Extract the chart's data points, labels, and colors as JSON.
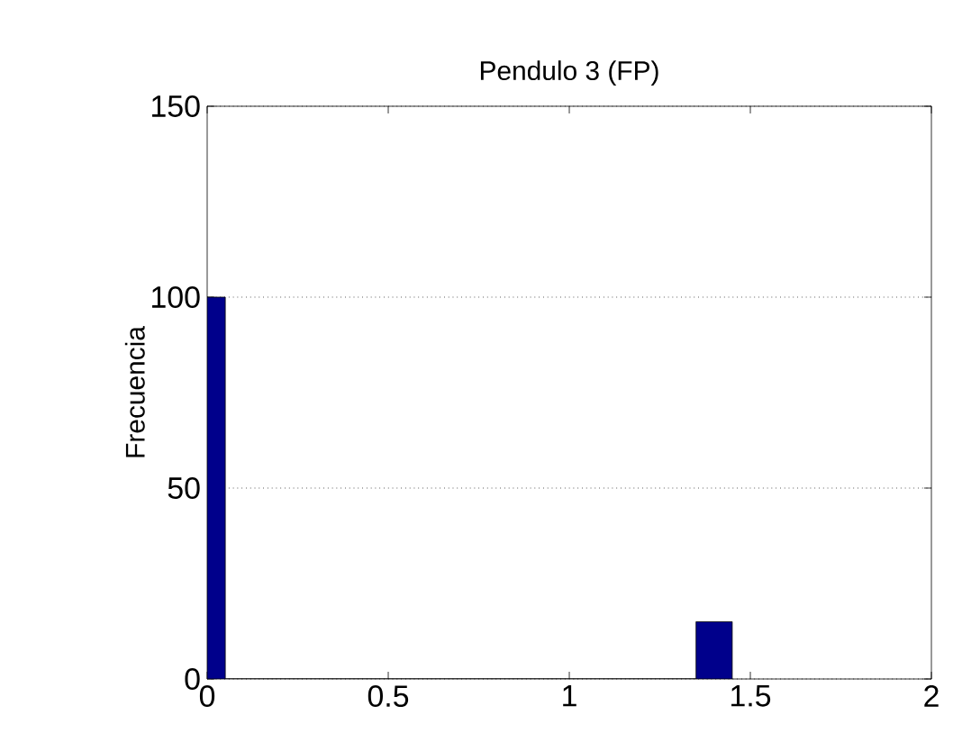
{
  "chart_data": {
    "type": "histogram",
    "title": "Pendulo 3 (FP)",
    "ylabel": "Frecuencia",
    "bins": [
      0,
      0.05,
      1.35,
      1.45
    ],
    "values": [
      100,
      0,
      15
    ],
    "color": "#00008b",
    "xlim": [
      0,
      2
    ],
    "xticks": [
      0,
      0.5,
      1,
      1.5,
      2
    ],
    "ylim": [
      0,
      150
    ],
    "yticks": [
      0,
      50,
      100,
      150
    ],
    "grid": "y"
  }
}
